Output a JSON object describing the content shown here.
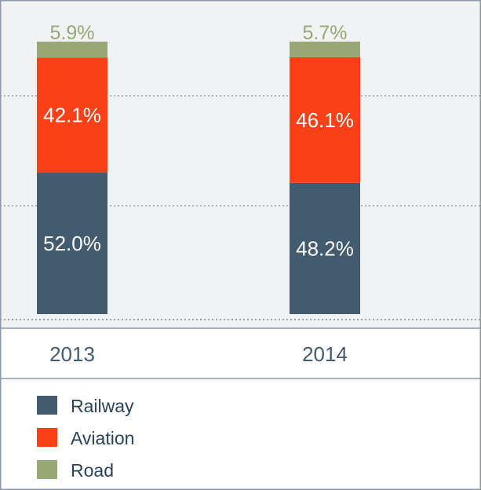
{
  "chart_data": {
    "type": "bar",
    "stacked": true,
    "categories": [
      "2013",
      "2014"
    ],
    "series": [
      {
        "name": "Railway",
        "values": [
          52.0,
          48.2
        ],
        "labels": [
          "52.0%",
          "48.2%"
        ]
      },
      {
        "name": "Aviation",
        "values": [
          42.1,
          46.1
        ],
        "labels": [
          "42.1%",
          "46.1%"
        ]
      },
      {
        "name": "Road",
        "values": [
          5.9,
          5.7
        ],
        "labels": [
          "5.9%",
          "5.7%"
        ]
      }
    ],
    "ylim": [
      0,
      100
    ],
    "grid": true,
    "legend_position": "bottom"
  },
  "colors": {
    "Railway": "#435b6f",
    "Aviation": "#fa4017",
    "Road": "#98a877",
    "background": "#f0f2f4",
    "road_label": "#98a877",
    "inner_label": "#ffffff",
    "tick_label": "#435b6f",
    "legend_text": "#2b4257",
    "grid": "#9aa1a6",
    "border": "#8d9aa5"
  }
}
